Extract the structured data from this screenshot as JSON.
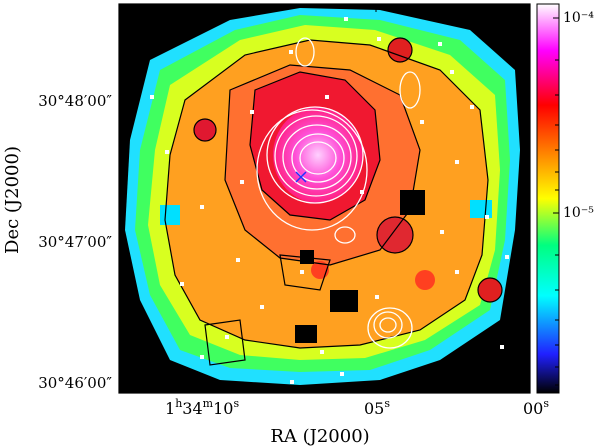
{
  "axes": {
    "xlabel": "RA (J2000)",
    "ylabel": "Dec (J2000)",
    "x_ticks": [
      {
        "label_main": "1",
        "sup1": "h",
        "mid1": "34",
        "sup2": "m",
        "mid2": "10",
        "sup3": "s"
      },
      {
        "label_main": "05",
        "sup1": "s"
      },
      {
        "label_main": "00",
        "sup1": "s"
      }
    ],
    "y_ticks": [
      "30°48′00″",
      "30°47′00″",
      "30°46′00″"
    ]
  },
  "colorbar": {
    "tick_labels": [
      "10⁻⁴",
      "10⁻⁵"
    ],
    "colors": [
      "#000000",
      "#2020ff",
      "#00ffff",
      "#00ff80",
      "#ffff00",
      "#ff8000",
      "#ff0000",
      "#ff00ff",
      "#ffffff"
    ]
  },
  "map": {
    "background": "#000000",
    "peak_color": "#ff60e0"
  }
}
